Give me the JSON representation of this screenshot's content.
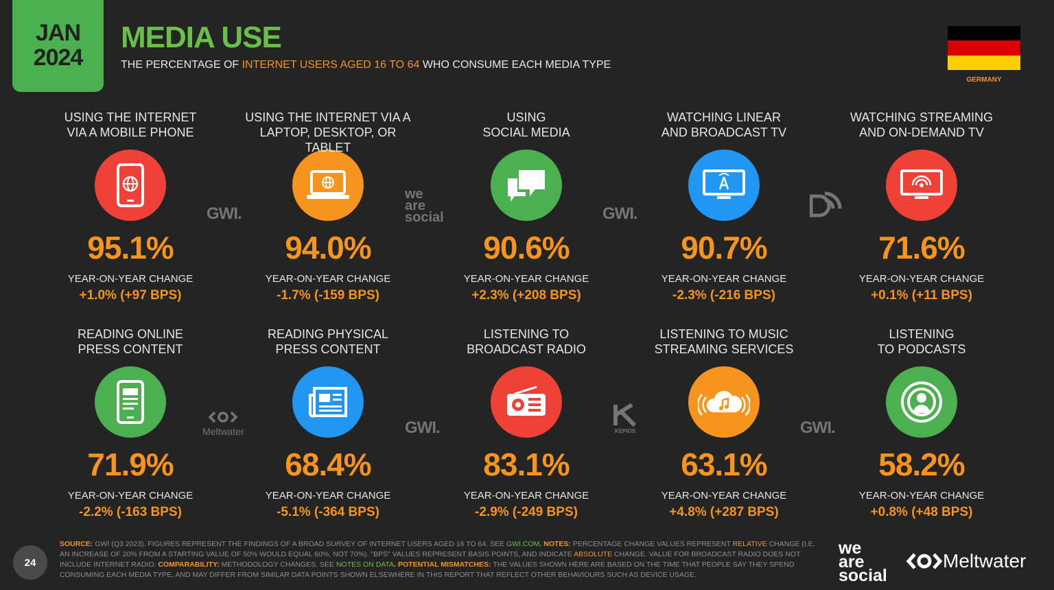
{
  "header": {
    "month": "JAN",
    "year": "2024",
    "title": "MEDIA USE",
    "subtitle_pre": "THE PERCENTAGE OF ",
    "subtitle_hl": "INTERNET USERS AGED 16 TO 64",
    "subtitle_post": " WHO CONSUME EACH MEDIA TYPE",
    "country": "GERMANY"
  },
  "colors": {
    "green": "#4caf50",
    "orange": "#f7941d",
    "red": "#ef4136",
    "blue": "#2196f3",
    "flag_black": "#000000",
    "flag_red": "#dd0000",
    "flag_gold": "#ffce00"
  },
  "tiles": [
    {
      "label1": "USING THE INTERNET",
      "label2": "VIA A MOBILE PHONE",
      "value": "95.1%",
      "yoy": "YEAR-ON-YEAR CHANGE",
      "change": "+1.0% (+97 BPS)",
      "icon": "mobile-phone-icon",
      "color": "#ef4136"
    },
    {
      "label1": "USING THE INTERNET VIA A",
      "label2": "LAPTOP, DESKTOP, OR TABLET",
      "value": "94.0%",
      "yoy": "YEAR-ON-YEAR CHANGE",
      "change": "-1.7% (-159 BPS)",
      "icon": "laptop-icon",
      "color": "#f7941d"
    },
    {
      "label1": "USING",
      "label2": "SOCIAL MEDIA",
      "value": "90.6%",
      "yoy": "YEAR-ON-YEAR CHANGE",
      "change": "+2.3% (+208 BPS)",
      "icon": "chat-bubbles-icon",
      "color": "#4caf50"
    },
    {
      "label1": "WATCHING LINEAR",
      "label2": "AND BROADCAST TV",
      "value": "90.7%",
      "yoy": "YEAR-ON-YEAR CHANGE",
      "change": "-2.3% (-216 BPS)",
      "icon": "tv-antenna-icon",
      "color": "#2196f3"
    },
    {
      "label1": "WATCHING STREAMING",
      "label2": "AND ON-DEMAND TV",
      "value": "71.6%",
      "yoy": "YEAR-ON-YEAR CHANGE",
      "change": "+0.1% (+11 BPS)",
      "icon": "streaming-tv-icon",
      "color": "#ef4136"
    },
    {
      "label1": "READING ONLINE",
      "label2": "PRESS CONTENT",
      "value": "71.9%",
      "yoy": "YEAR-ON-YEAR CHANGE",
      "change": "-2.2% (-163 BPS)",
      "icon": "mobile-article-icon",
      "color": "#4caf50"
    },
    {
      "label1": "READING PHYSICAL",
      "label2": "PRESS CONTENT",
      "value": "68.4%",
      "yoy": "YEAR-ON-YEAR CHANGE",
      "change": "-5.1% (-364 BPS)",
      "icon": "newspaper-icon",
      "color": "#2196f3"
    },
    {
      "label1": "LISTENING TO",
      "label2": "BROADCAST RADIO",
      "value": "83.1%",
      "yoy": "YEAR-ON-YEAR CHANGE",
      "change": "-2.9% (-249 BPS)",
      "icon": "radio-icon",
      "color": "#ef4136"
    },
    {
      "label1": "LISTENING TO MUSIC",
      "label2": "STREAMING SERVICES",
      "value": "63.1%",
      "yoy": "YEAR-ON-YEAR CHANGE",
      "change": "+4.8% (+287 BPS)",
      "icon": "cloud-music-icon",
      "color": "#f7941d"
    },
    {
      "label1": "LISTENING",
      "label2": "TO PODCASTS",
      "value": "58.2%",
      "yoy": "YEAR-ON-YEAR CHANGE",
      "change": "+0.8% (+48 BPS)",
      "icon": "podcast-icon",
      "color": "#4caf50"
    }
  ],
  "watermarks": {
    "gwi": "GWI.",
    "was1": "we",
    "was2": "are",
    "was3": "social",
    "meltwater": "Meltwater",
    "kepios": "KEPIOS"
  },
  "footer": {
    "page": "24",
    "source_label": "SOURCE:",
    "source_text": " GWI (Q3 2023). FIGURES REPRESENT THE FINDINGS OF A BROAD SURVEY OF INTERNET USERS AGED 16 TO 64. SEE ",
    "source_link": "GWI.COM",
    "notes_label": ". NOTES:",
    "notes_text1": " PERCENTAGE CHANGE VALUES REPRESENT ",
    "notes_rel": "RELATIVE",
    "notes_text2": " CHANGE (I.E. AN INCREASE OF 20% FROM A STARTING VALUE OF 50% WOULD EQUAL 60%, NOT 70%). \"BPS\" VALUES REPRESENT BASIS POINTS, AND INDICATE ",
    "notes_abs": "ABSOLUTE",
    "notes_text3": " CHANGE. VALUE FOR BROADCAST RADIO DOES NOT INCLUDE INTERNET RADIO. ",
    "comp_label": "COMPARABILITY:",
    "comp_text": " METHODOLOGY CHANGES. SEE ",
    "comp_link": "NOTES ON DATA",
    "mis_label": ". POTENTIAL MISMATCHES:",
    "mis_text": " THE VALUES SHOWN HERE ARE BASED ON THE TIME THAT PEOPLE SAY THEY SPEND CONSUMING EACH MEDIA TYPE, AND MAY DIFFER FROM SIMILAR DATA POINTS SHOWN ELSEWHERE IN THIS REPORT THAT REFLECT OTHER BEHAVIOURS SUCH AS DEVICE USAGE.",
    "brand1_1": "we",
    "brand1_2": "are",
    "brand1_3": "social",
    "brand2": "Meltwater"
  }
}
